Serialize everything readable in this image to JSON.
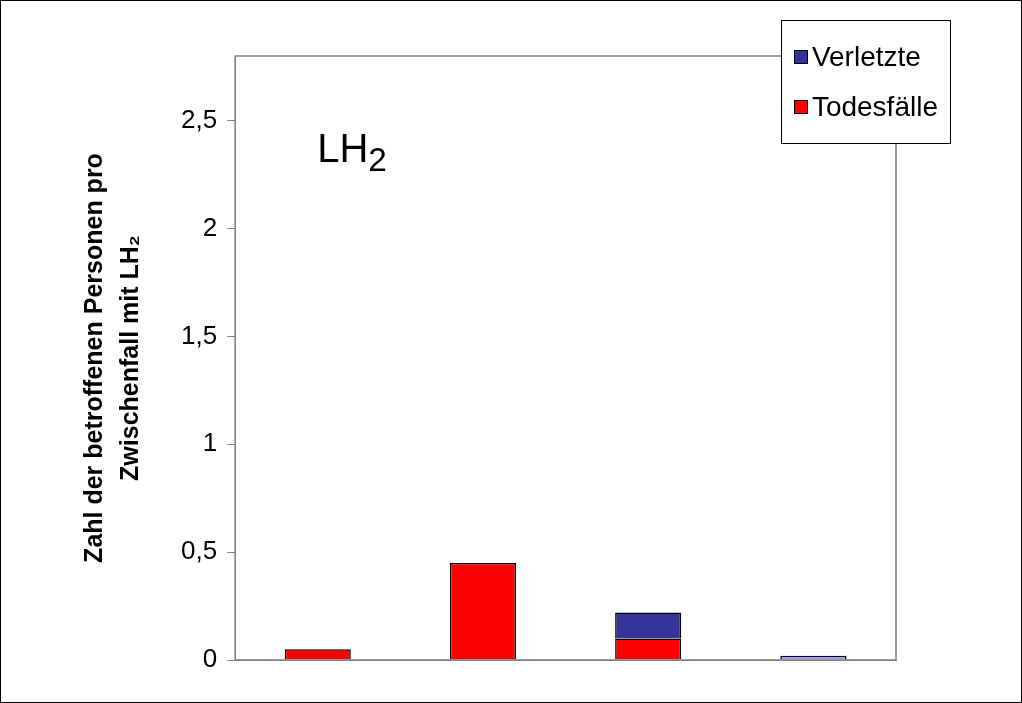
{
  "chart_data": {
    "type": "bar",
    "stacked": true,
    "categories": [
      null,
      null,
      null,
      null
    ],
    "series": [
      {
        "name": "Todesfälle",
        "color": "#ff0000",
        "values": [
          0.05,
          0.45,
          0.1,
          null
        ]
      },
      {
        "name": "Verletzte",
        "color": "#333399",
        "colors": [
          "#333399",
          "#333399",
          "#333399",
          "#9999ff"
        ],
        "values": [
          null,
          null,
          0.12,
          0.02
        ]
      }
    ],
    "ylabel": "Zahl der betroffenen Personen pro Zwischenfall mit LH₂",
    "annotations": [
      "LH$_{2}$"
    ],
    "ylim": [
      0,
      2.8
    ],
    "yticks": [
      0,
      {
        "value": 0.5,
        "label": "0,5"
      },
      1,
      {
        "value": 1.5,
        "label": "1,5"
      },
      2,
      {
        "value": 2.5,
        "label": "2,5"
      }
    ],
    "grid": false,
    "legend": "top right",
    "tick_labels": "y"
  }
}
